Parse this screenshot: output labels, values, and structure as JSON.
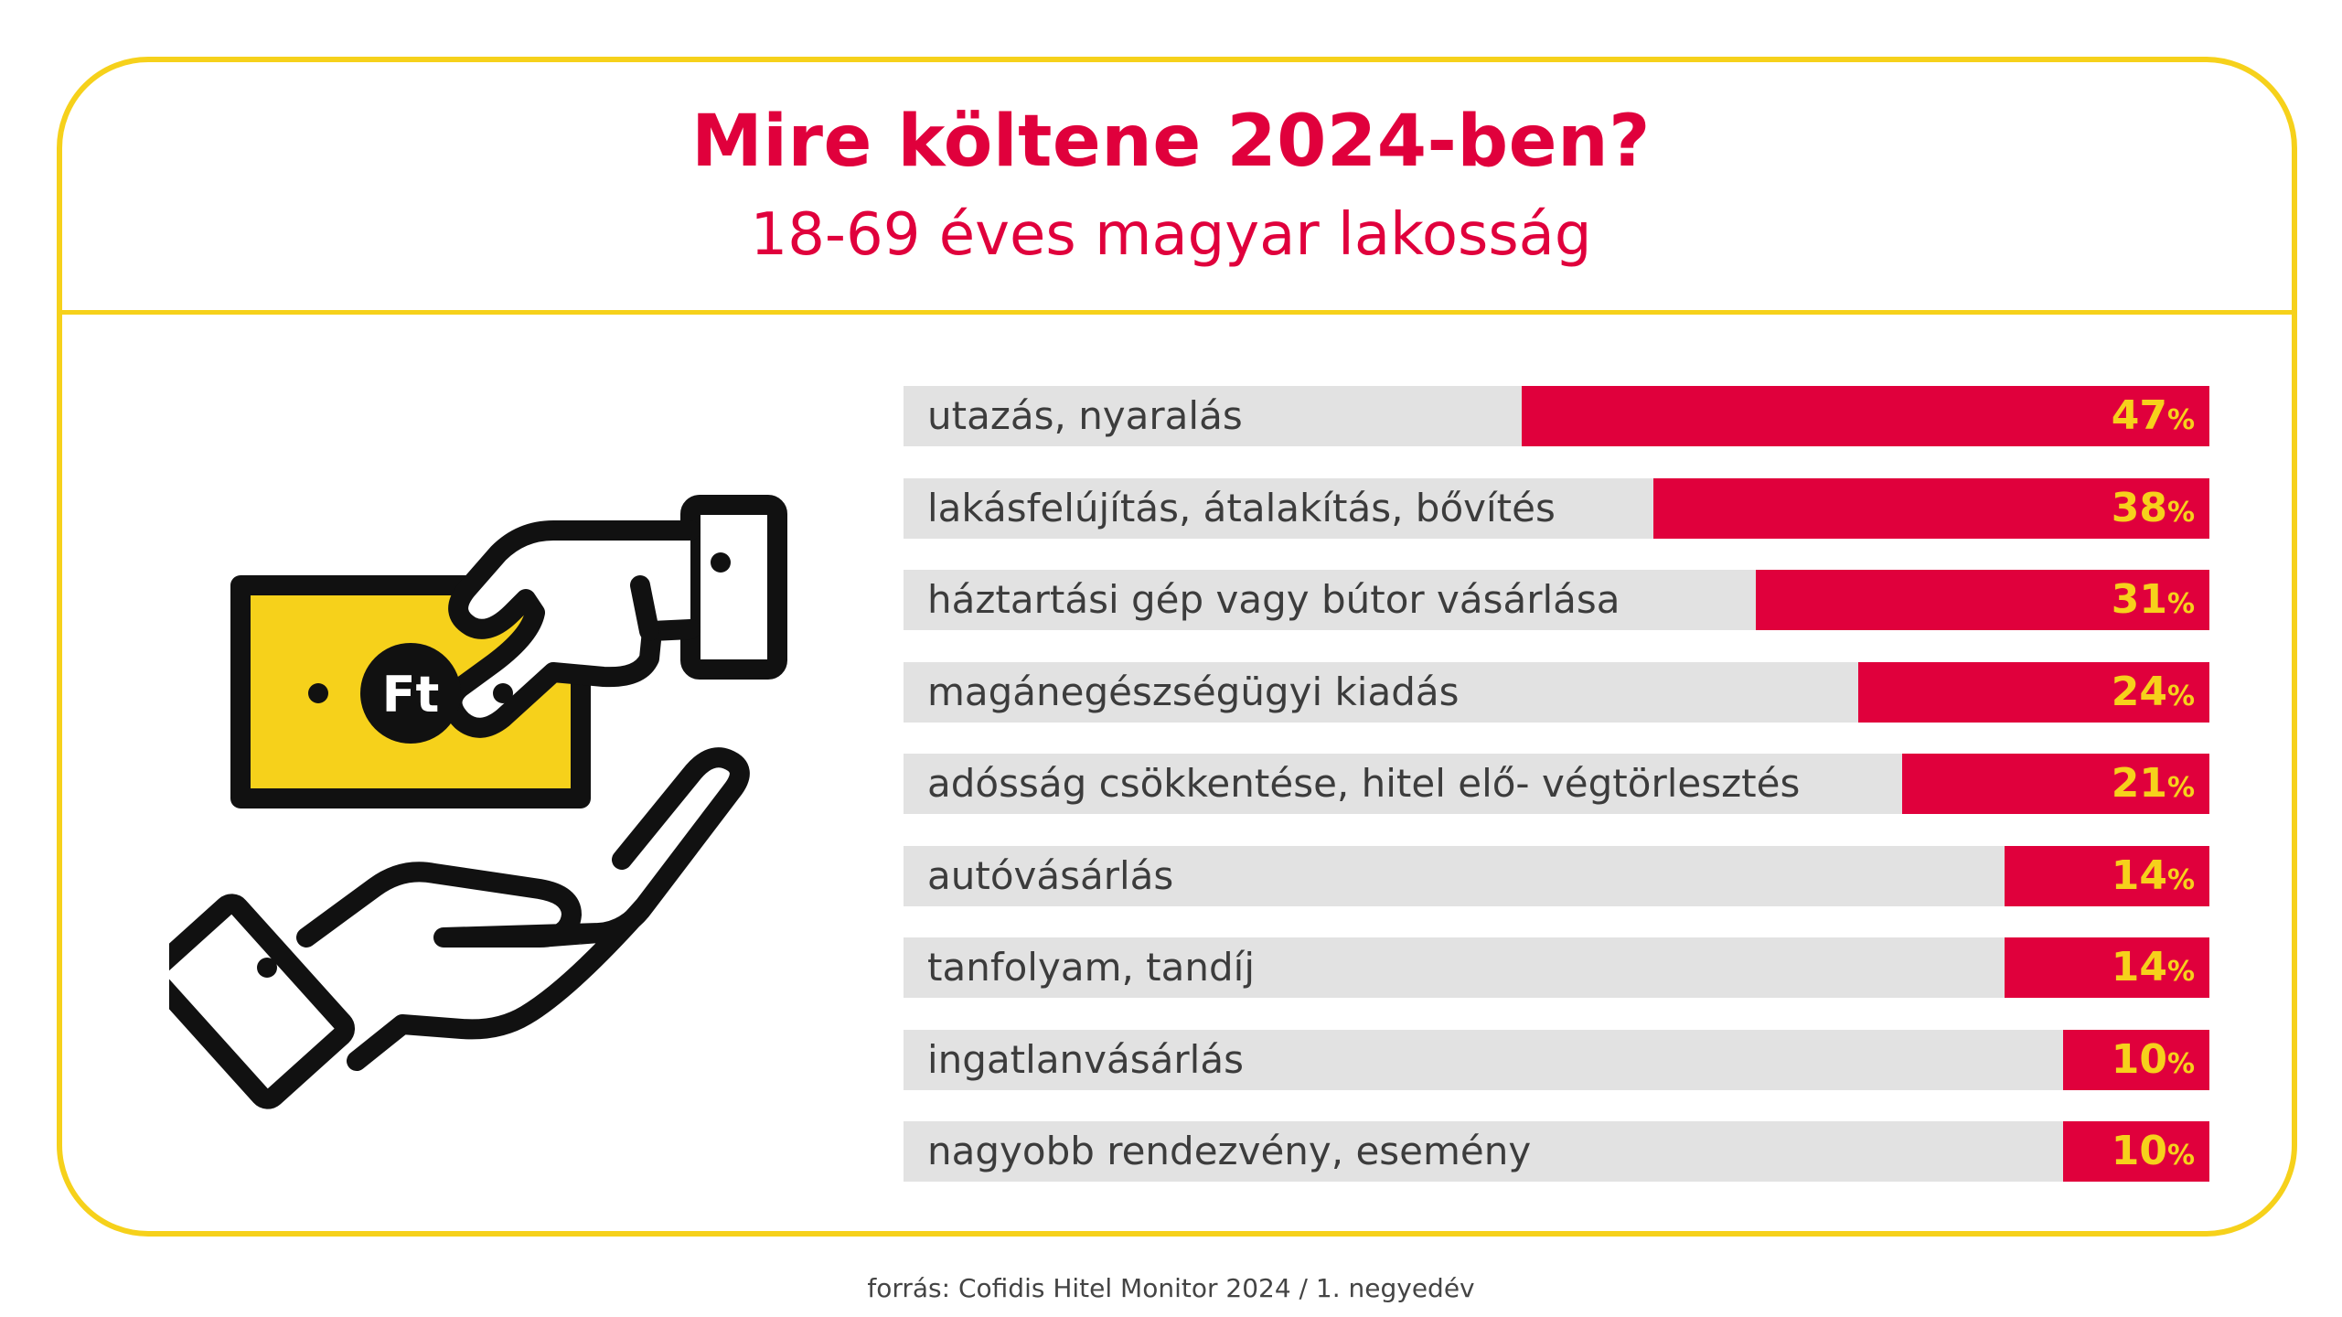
{
  "title": "Mire költene 2024-ben?",
  "subtitle": "18-69 éves magyar lakosság",
  "source": "forrás: Cofidis Hitel Monitor 2024 / 1. negyedév",
  "icon": {
    "name": "hand-giving-money-icon",
    "currency_label": "Ft"
  },
  "colors": {
    "accent": "#e0003c",
    "frame": "#f6d11b",
    "bar_background": "#e2e2e2",
    "value_text": "#f6d11b"
  },
  "chart_data": {
    "type": "bar",
    "orientation": "horizontal",
    "unit": "%",
    "xlim": [
      0,
      100
    ],
    "categories": [
      "utazás, nyaralás",
      "lakásfelújítás, átalakítás, bővítés",
      "háztartási gép vagy bútor vásárlása",
      "magánegészségügyi kiadás",
      "adósság csökkentése, hitel elő- végtörlesztés",
      "autóvásárlás",
      "tanfolyam, tandíj",
      "ingatlanvásárlás",
      "nagyobb rendezvény, esemény"
    ],
    "values": [
      47,
      38,
      31,
      24,
      21,
      14,
      14,
      10,
      10
    ]
  }
}
